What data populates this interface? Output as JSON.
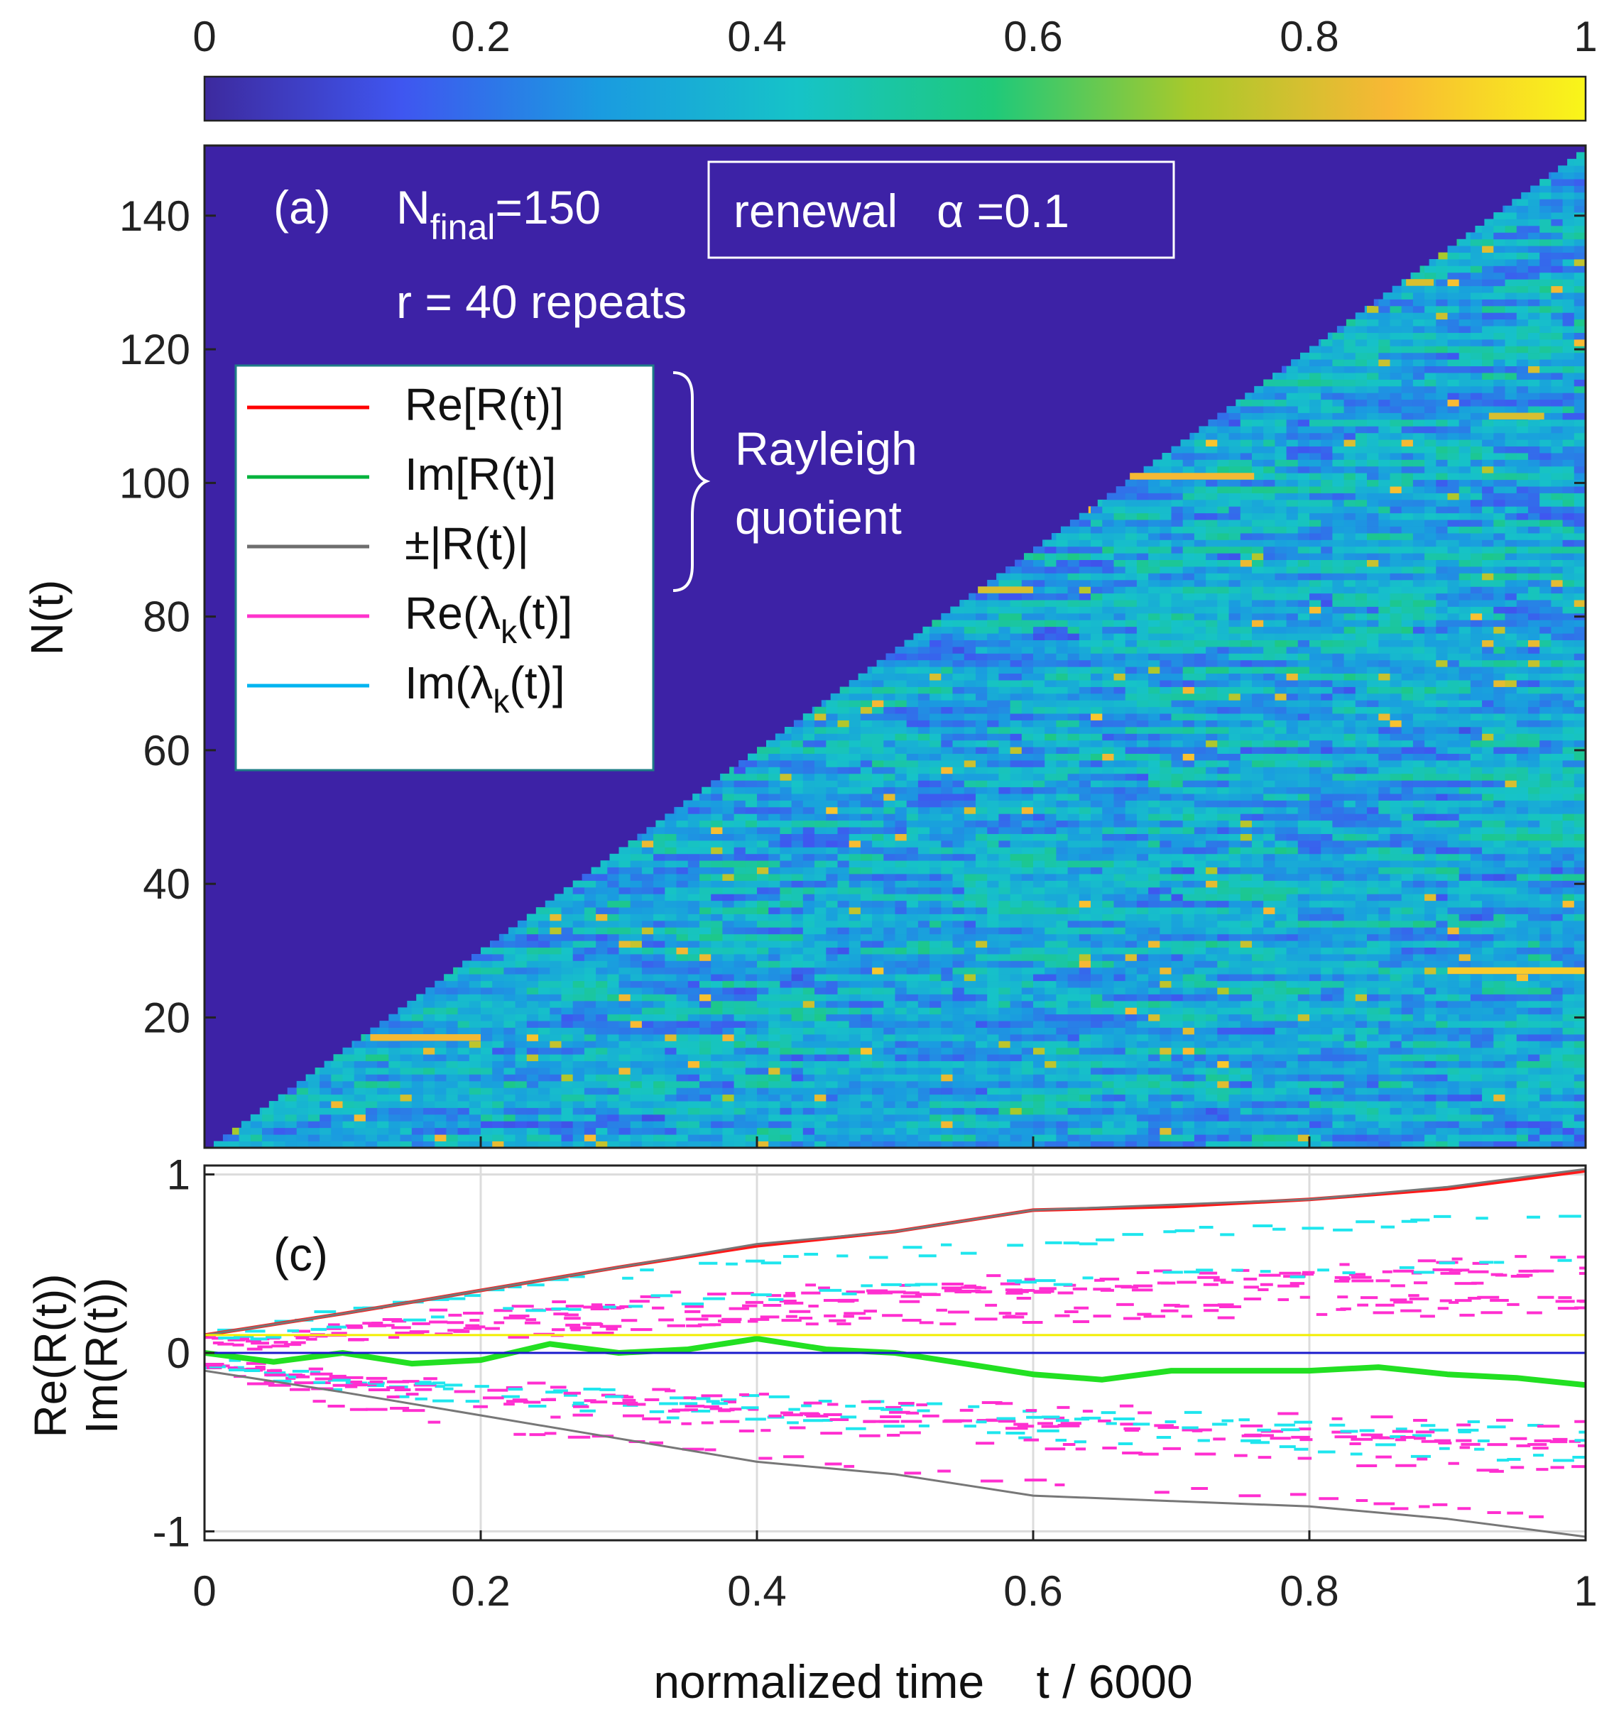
{
  "colorbar": {
    "ticks": [
      "0",
      "0.2",
      "0.4",
      "0.6",
      "0.8",
      "1"
    ],
    "range": [
      0,
      1
    ],
    "stops": [
      "#3d2a9e",
      "#3f56f0",
      "#1a9be0",
      "#16c3c8",
      "#1fc97a",
      "#a8c92b",
      "#f8b834",
      "#f9f619"
    ]
  },
  "panel_a": {
    "label": "(a)",
    "nfinal_N": "N",
    "nfinal_sub": "final",
    "nfinal_val": "=150",
    "repeats": "r = 40 repeats",
    "mode_box": "renewal   α =0.1",
    "ylabel": "N(t)",
    "yticks": [
      "20",
      "40",
      "60",
      "80",
      "100",
      "120",
      "140"
    ],
    "ylim": [
      1,
      150
    ],
    "xlim": [
      0,
      1
    ],
    "legend": {
      "items": [
        {
          "label": "Re[R(t)]",
          "color": "#ff0000"
        },
        {
          "label": "Im[R(t)]",
          "color": "#00b33c"
        },
        {
          "label": "±|R(t)|",
          "color": "#6e6e6e"
        },
        {
          "label_main": "Re(λ",
          "label_sub": "k",
          "label_end": "(t)]",
          "color": "#ff33cc"
        },
        {
          "label_main": "Im(λ",
          "label_sub": "k",
          "label_end": "(t)]",
          "color": "#00b4f0"
        }
      ],
      "brace_text": [
        "Rayleigh",
        "quotient"
      ]
    },
    "background_color": "#3d22a6"
  },
  "panel_c": {
    "label": "(c)",
    "ylabel_line1": "Re(R(t))",
    "ylabel_line2": "Im(R(t))",
    "yticks": [
      "-1",
      "0",
      "1"
    ],
    "ylim": [
      -1.05,
      1.05
    ]
  },
  "xaxis": {
    "ticks": [
      "0",
      "0.2",
      "0.4",
      "0.6",
      "0.8",
      "1"
    ],
    "label": "normalized time    t / 6000"
  },
  "chart_data": {
    "type": "heatmap",
    "title": "",
    "xlabel": "normalized time    t / 6000",
    "ylabel": "N(t)",
    "xlim": [
      0,
      1
    ],
    "ylim": [
      1,
      150
    ],
    "color_range": [
      0,
      1
    ],
    "description_values": {
      "rows_active_until": "N(t) = 150 t",
      "bright_segments": [
        {
          "N": 17,
          "t_start": 0.12,
          "t_end": 0.2,
          "value": 0.85
        },
        {
          "N": 27,
          "t_start": 0.9,
          "t_end": 1.0,
          "value": 0.9
        },
        {
          "N": 101,
          "t_start": 0.67,
          "t_end": 0.76,
          "value": 0.85
        },
        {
          "N": 84,
          "t_start": 0.56,
          "t_end": 0.6,
          "value": 0.8
        },
        {
          "N": 110,
          "t_start": 0.93,
          "t_end": 0.97,
          "value": 0.8
        },
        {
          "N": 130,
          "t_start": 0.87,
          "t_end": 0.89,
          "value": 0.8
        }
      ]
    },
    "lines": {
      "type": "line",
      "ylim": [
        -1.05,
        1.05
      ],
      "series": [
        {
          "name": "Re[R(t)]",
          "x": [
            0,
            0.1,
            0.2,
            0.3,
            0.4,
            0.5,
            0.6,
            0.7,
            0.8,
            0.9,
            1.0
          ],
          "y": [
            0.1,
            0.22,
            0.35,
            0.48,
            0.6,
            0.68,
            0.8,
            0.82,
            0.86,
            0.92,
            1.02
          ]
        },
        {
          "name": "Im[R(t)]",
          "x": [
            0,
            0.05,
            0.1,
            0.15,
            0.2,
            0.25,
            0.3,
            0.35,
            0.4,
            0.45,
            0.5,
            0.55,
            0.6,
            0.65,
            0.7,
            0.75,
            0.8,
            0.85,
            0.9,
            0.95,
            1.0
          ],
          "y": [
            0,
            -0.05,
            0.0,
            -0.06,
            -0.04,
            0.05,
            0.0,
            0.02,
            0.08,
            0.02,
            0.0,
            -0.06,
            -0.12,
            -0.15,
            -0.1,
            -0.1,
            -0.1,
            -0.08,
            -0.12,
            -0.14,
            -0.18
          ]
        },
        {
          "name": "+|R(t)|",
          "x": [
            0,
            0.1,
            0.2,
            0.3,
            0.4,
            0.5,
            0.6,
            0.7,
            0.8,
            0.9,
            1.0
          ],
          "y": [
            0.1,
            0.22,
            0.35,
            0.48,
            0.61,
            0.68,
            0.8,
            0.83,
            0.86,
            0.93,
            1.03
          ]
        },
        {
          "name": "-|R(t)|",
          "x": [
            0,
            0.1,
            0.2,
            0.3,
            0.4,
            0.5,
            0.6,
            0.7,
            0.8,
            0.9,
            1.0
          ],
          "y": [
            -0.1,
            -0.22,
            -0.35,
            -0.48,
            -0.61,
            -0.68,
            -0.8,
            -0.83,
            -0.86,
            -0.93,
            -1.03
          ]
        },
        {
          "name": "reference 0",
          "x": [
            0,
            1
          ],
          "y": [
            0,
            0
          ]
        },
        {
          "name": "reference 0.1",
          "x": [
            0,
            1
          ],
          "y": [
            0.1,
            0.1
          ]
        }
      ]
    }
  }
}
